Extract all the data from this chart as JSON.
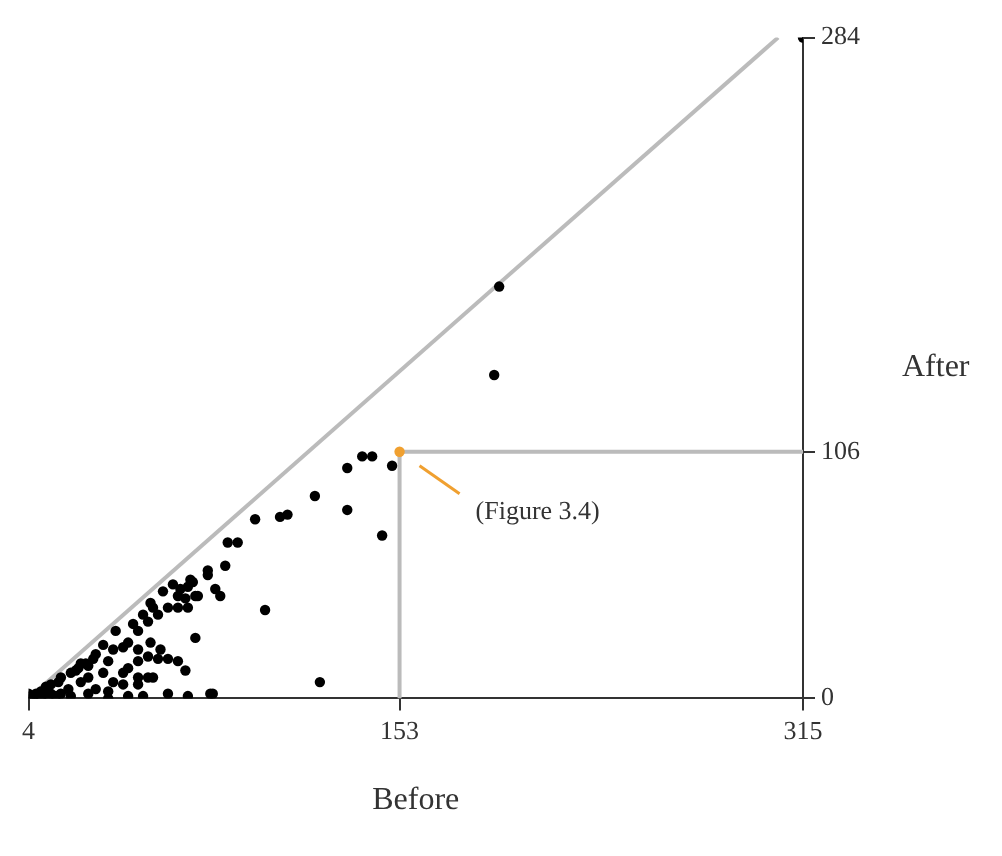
{
  "chart_data": {
    "type": "scatter",
    "xlabel": "Before",
    "ylabel": "After",
    "xlim": [
      4,
      315
    ],
    "ylim": [
      0,
      284
    ],
    "xticks": [
      4,
      153,
      315
    ],
    "yticks": [
      0,
      106,
      284
    ],
    "grid": false,
    "legend": false,
    "annotations": [
      "(Figure 3.4)"
    ],
    "series": [
      {
        "type": "line",
        "color": "#bbbbbb",
        "x": [
          4,
          305
        ],
        "values": [
          0,
          284
        ]
      },
      {
        "type": "line",
        "color": "#bbbbbb",
        "x": [
          153,
          153,
          315
        ],
        "values": [
          0,
          106,
          106
        ]
      },
      {
        "marker": "circle",
        "color": "#000000",
        "x": [
          315,
          193,
          191,
          138,
          142,
          150,
          132,
          119,
          132,
          146,
          95,
          105,
          108,
          84,
          88,
          76,
          83,
          79,
          81,
          99,
          121,
          78,
          70,
          68,
          58,
          53,
          64,
          71,
          67,
          76,
          69,
          72,
          64,
          68,
          54,
          50,
          46,
          39,
          71,
          42,
          56,
          52,
          48,
          44,
          36,
          67,
          34,
          42,
          36,
          48,
          60,
          68,
          77,
          50,
          44,
          31,
          25,
          20,
          15,
          9,
          6,
          28,
          23,
          17,
          31,
          25,
          34,
          38,
          44,
          48,
          52,
          56,
          60,
          62,
          65,
          11,
          4,
          13,
          28,
          36,
          28,
          42,
          48,
          53,
          57,
          60,
          64,
          48,
          52,
          38,
          54,
          5,
          7,
          9,
          13,
          16,
          21,
          24,
          27,
          30,
          11,
          17,
          21
        ],
        "values": [
          284,
          177,
          139,
          104,
          104,
          100,
          99,
          87,
          81,
          70,
          77,
          78,
          79,
          67,
          67,
          55,
          57,
          47,
          44,
          38,
          7,
          2,
          50,
          48,
          46,
          41,
          44,
          44,
          43,
          53,
          51,
          44,
          39,
          39,
          39,
          36,
          32,
          29,
          26,
          22,
          17,
          18,
          16,
          13,
          16,
          12,
          11,
          6,
          3,
          6,
          2,
          1,
          2,
          1,
          1,
          4,
          7,
          4,
          1,
          0,
          1,
          14,
          12,
          9,
          19,
          15,
          23,
          21,
          24,
          29,
          33,
          36,
          39,
          49,
          47,
          5,
          2,
          2,
          2,
          0,
          9,
          11,
          21,
          24,
          21,
          17,
          16,
          9,
          9,
          7,
          9,
          1,
          2,
          3,
          6,
          7,
          11,
          13,
          15,
          17,
          2,
          2,
          1
        ]
      },
      {
        "marker": "circle",
        "color": "#f0a030",
        "x": [
          153
        ],
        "values": [
          106
        ]
      }
    ]
  }
}
